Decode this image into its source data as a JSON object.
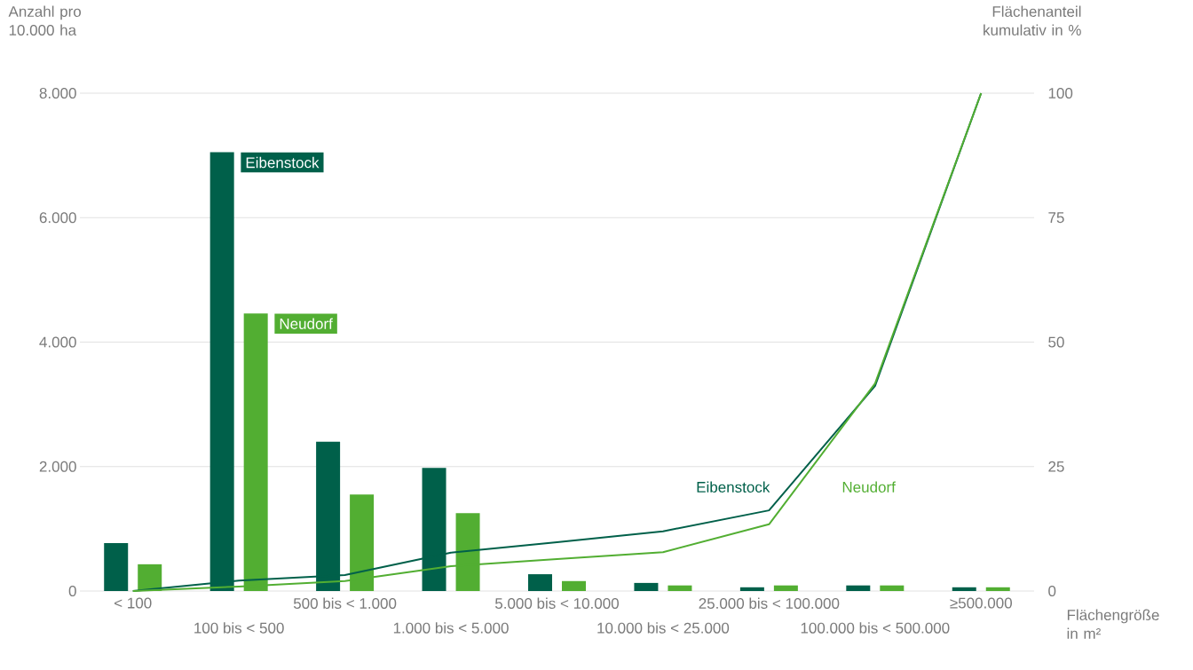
{
  "chart_data": {
    "type": "bar",
    "xlabel": "Flächengröße in m²",
    "ylabel": "Anzahl pro 10.000 ha",
    "y2label": "Flächenanteil kumulativ in %",
    "categories": [
      "< 100",
      "100 bis < 500",
      "500 bis < 1.000",
      "1.000 bis < 5.000",
      "5.000 bis < 10.000",
      "10.000 bis < 25.000",
      "25.000 bis < 100.000",
      "100.000 bis < 500.000",
      "≥500.000"
    ],
    "series": [
      {
        "name": "Eibenstock",
        "color": "#00604a",
        "values": [
          770,
          7050,
          2400,
          1980,
          270,
          130,
          60,
          90,
          60
        ]
      },
      {
        "name": "Neudorf",
        "color": "#52ae32",
        "values": [
          430,
          4460,
          1550,
          1250,
          160,
          90,
          90,
          90,
          60
        ]
      },
      {
        "name": "Eibenstock",
        "type": "line",
        "axis": "y2",
        "color": "#00604a",
        "values": [
          0,
          2.1,
          3.2,
          7.7,
          9.8,
          12,
          16.2,
          41.2,
          100
        ]
      },
      {
        "name": "Neudorf",
        "type": "line",
        "axis": "y2",
        "color": "#52ae32",
        "values": [
          0,
          0.9,
          2,
          5,
          6.4,
          7.8,
          13.4,
          41.7,
          100
        ]
      }
    ],
    "ylim": [
      0,
      8000
    ],
    "yticks": [
      {
        "value": 0,
        "label": "0"
      },
      {
        "value": 2000,
        "label": "2.000"
      },
      {
        "value": 4000,
        "label": "4.000"
      },
      {
        "value": 6000,
        "label": "6.000"
      },
      {
        "value": 8000,
        "label": "8.000"
      }
    ],
    "y2lim": [
      0,
      100
    ],
    "y2ticks": [
      0,
      25,
      50,
      75,
      100
    ],
    "grid": "y"
  }
}
